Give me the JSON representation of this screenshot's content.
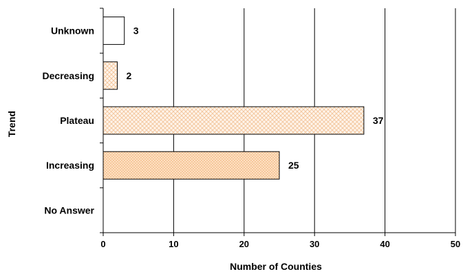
{
  "chart_data": {
    "type": "bar",
    "orientation": "horizontal",
    "categories": [
      "Unknown",
      "Decreasing",
      "Plateau",
      "Increasing",
      "No Answer"
    ],
    "values": [
      3,
      2,
      37,
      25,
      null
    ],
    "value_labels": [
      "3",
      "2",
      "37",
      "25",
      ""
    ],
    "xlabel": "Number of Counties",
    "ylabel": "Trend",
    "xlim": [
      0,
      50
    ],
    "xticks": [
      0,
      10,
      20,
      30,
      40,
      50
    ],
    "grid": "vertical",
    "bar_styles": [
      "white",
      "light-pattern",
      "light-pattern",
      "peach-pattern",
      "none"
    ],
    "colors": {
      "grid": "#000000",
      "bar_outline": "#000000",
      "pattern_light_bg": "#fff4ea",
      "pattern_light_fg": "#f3c59b",
      "pattern_peach_bg": "#fde0c2",
      "pattern_peach_fg": "#f1b57f"
    }
  }
}
